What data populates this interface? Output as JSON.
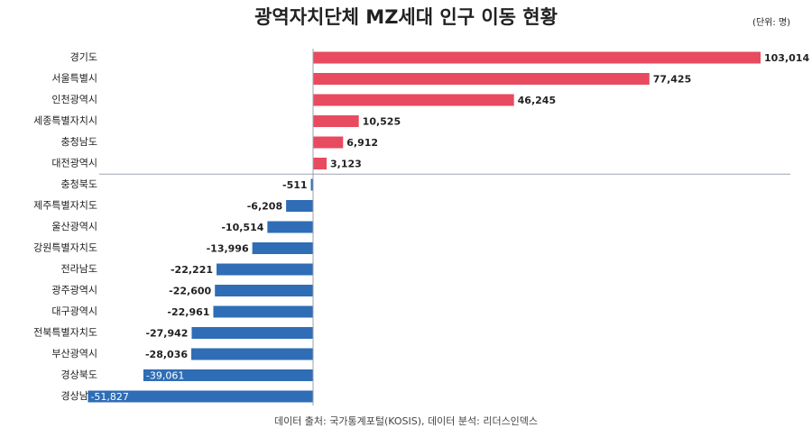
{
  "chart_data": {
    "type": "bar",
    "orientation": "horizontal",
    "title": "광역자치단체 MZ세대 인구 이동 현황",
    "unit_note": "(단위: 명)",
    "source": "데이터 출처: 국가통계포털(KOSIS), 데이터 분석: 리더스인덱스",
    "categories": [
      "경기도",
      "서울특별시",
      "인천광역시",
      "세종특별자치시",
      "충청남도",
      "대전광역시",
      "충청북도",
      "제주특별자치도",
      "울산광역시",
      "강원특별자치도",
      "전라남도",
      "광주광역시",
      "대구광역시",
      "전북특별자치도",
      "부산광역시",
      "경상북도",
      "경상남도"
    ],
    "values": [
      103014,
      77425,
      46245,
      10525,
      6912,
      3123,
      -511,
      -6208,
      -10514,
      -13996,
      -22221,
      -22600,
      -22961,
      -27942,
      -28036,
      -39061,
      -51827
    ],
    "value_labels": [
      "103,014",
      "77,425",
      "46,245",
      "10,525",
      "6,912",
      "3,123",
      "-511",
      "-6,208",
      "-10,514",
      "-13,996",
      "-22,221",
      "-22,600",
      "-22,961",
      "-27,942",
      "-28,036",
      "-39,061",
      "-51,827"
    ],
    "color_positive": "#e84a5f",
    "color_negative": "#2f6db6"
  }
}
